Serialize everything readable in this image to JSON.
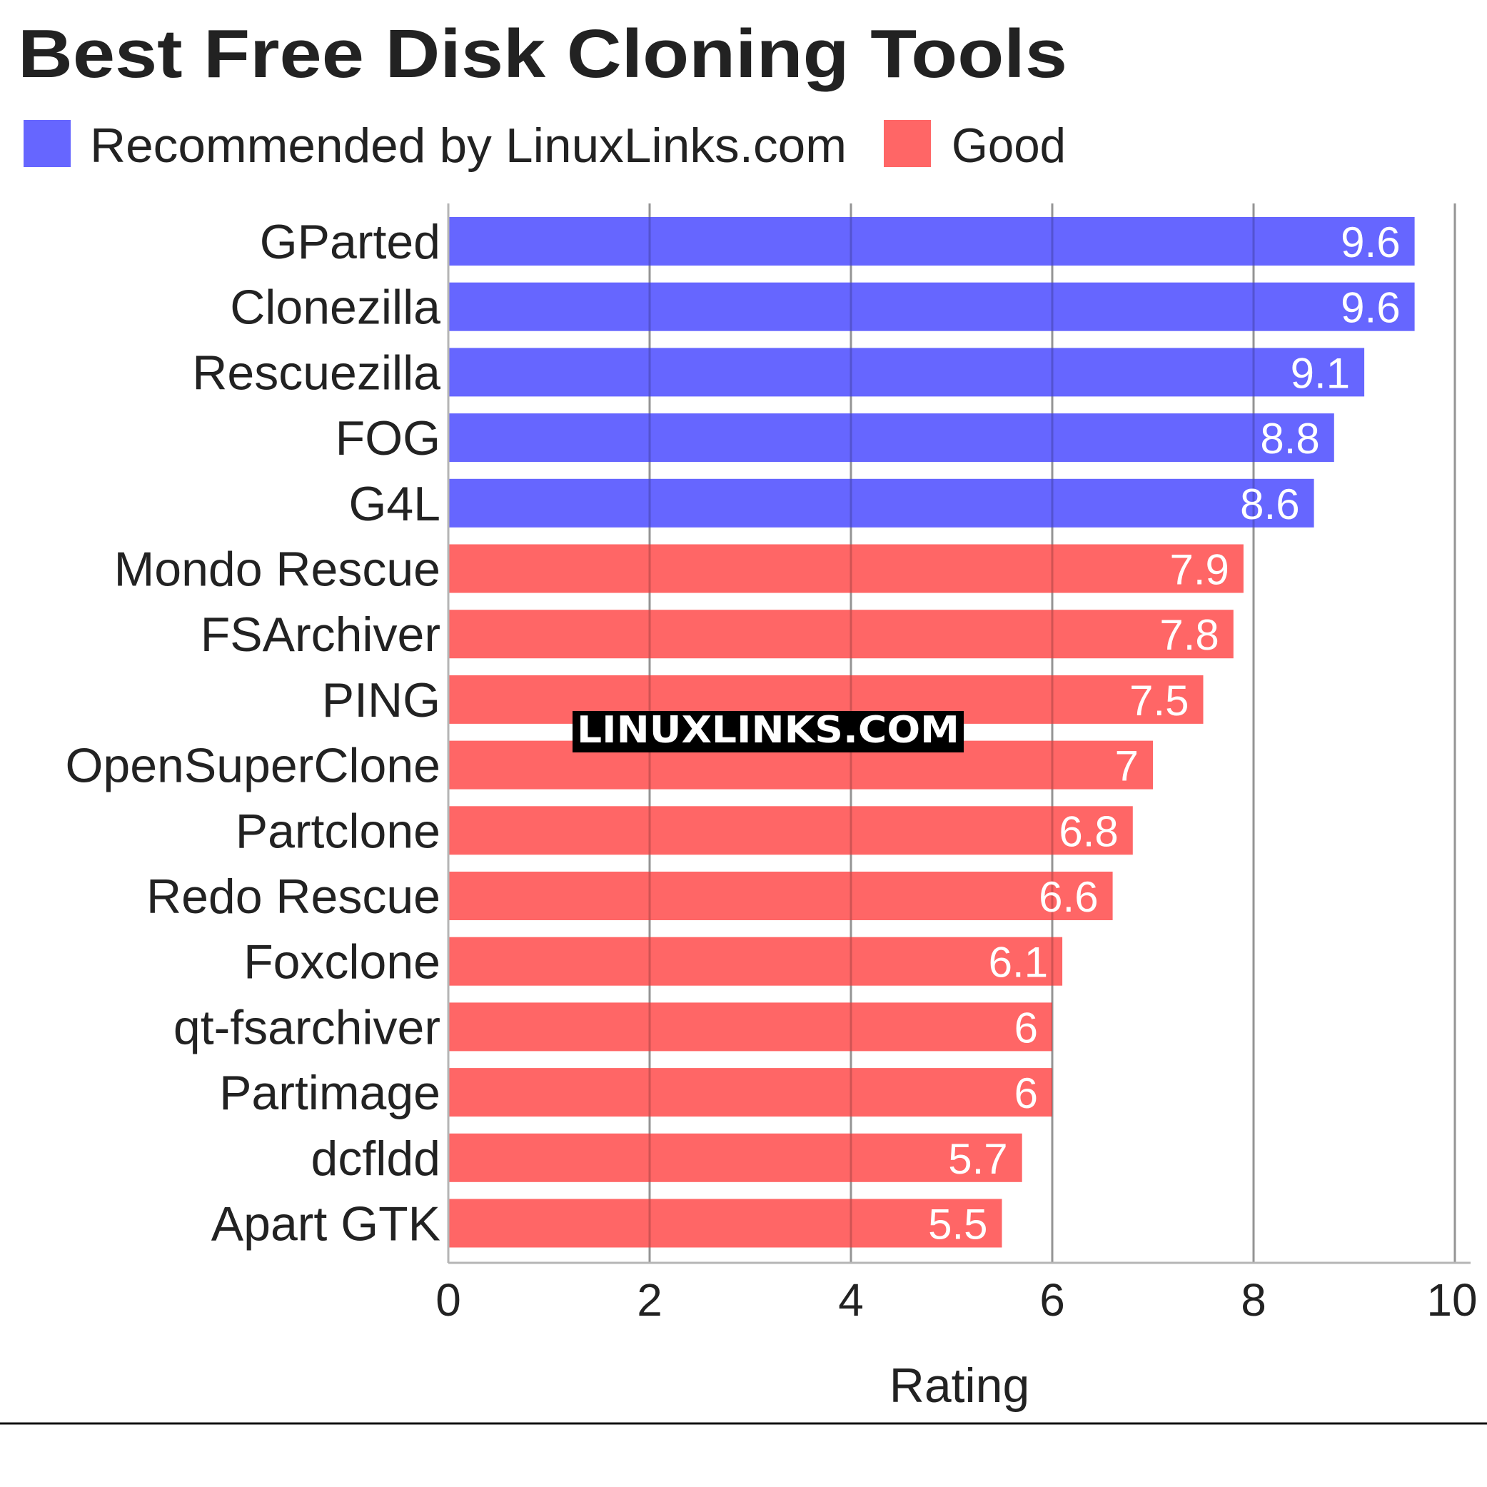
{
  "chart_data": {
    "type": "bar",
    "orientation": "horizontal",
    "title": "Best Free Disk Cloning Tools",
    "xlabel": "Rating",
    "ylabel": "",
    "xlim": [
      0,
      10
    ],
    "xticks": [
      0,
      2,
      4,
      6,
      8,
      10
    ],
    "grid": true,
    "legend_placement": "top-left",
    "legend": [
      {
        "name": "Recommended by LinuxLinks.com",
        "color": "#6666ff"
      },
      {
        "name": "Good",
        "color": "#ff6666"
      }
    ],
    "categories": [
      "GParted",
      "Clonezilla",
      "Rescuezilla",
      "FOG",
      "G4L",
      "Mondo Rescue",
      "FSArchiver",
      "PING",
      "OpenSuperClone",
      "Partclone",
      "Redo Rescue",
      "Foxclone",
      "qt-fsarchiver",
      "Partimage",
      "dcfldd",
      "Apart GTK"
    ],
    "values": [
      9.6,
      9.6,
      9.1,
      8.8,
      8.6,
      7.9,
      7.8,
      7.5,
      7,
      6.8,
      6.6,
      6.1,
      6,
      6,
      5.7,
      5.5
    ],
    "value_labels": [
      "9.6",
      "9.6",
      "9.1",
      "8.8",
      "8.6",
      "7.9",
      "7.8",
      "7.5",
      "7",
      "6.8",
      "6.6",
      "6.1",
      "6",
      "6",
      "5.7",
      "5.5"
    ],
    "groups": [
      0,
      0,
      0,
      0,
      0,
      1,
      1,
      1,
      1,
      1,
      1,
      1,
      1,
      1,
      1,
      1
    ]
  },
  "watermark": {
    "text": "LINUXLINKS.COM"
  }
}
